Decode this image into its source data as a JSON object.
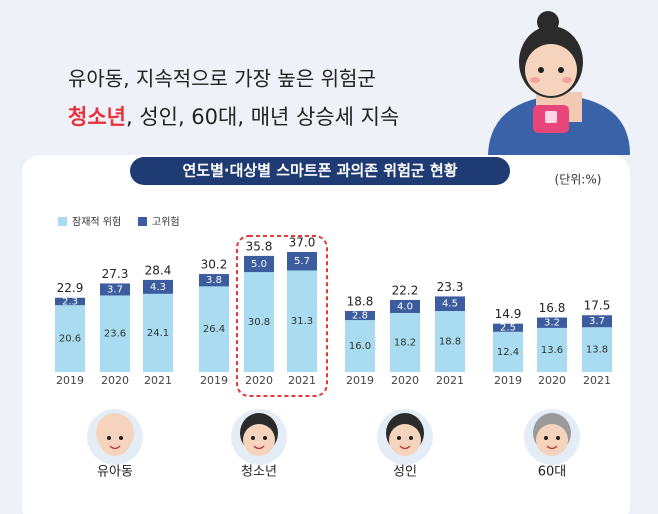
{
  "header": {
    "line1": "유아동, 지속적으로 가장 높은 위험군",
    "highlight": "청소년",
    "line2": ", 성인, 60대, 매년 상승세 지속"
  },
  "chart_data": {
    "type": "bar",
    "stacked": true,
    "title": "연도별·대상별 스마트폰 과의존 위험군 현황",
    "unit": "(단위:%)",
    "groups": [
      "유아동",
      "청소년",
      "성인",
      "60대"
    ],
    "categories": [
      "2019",
      "2020",
      "2021",
      "2019",
      "2020",
      "2021",
      "2019",
      "2020",
      "2021",
      "2019",
      "2020",
      "2021"
    ],
    "series": [
      {
        "name": "잠재적 위험",
        "color": "#a9dcf1",
        "values": [
          20.6,
          23.6,
          24.1,
          26.4,
          30.8,
          31.3,
          16.0,
          18.2,
          18.8,
          12.4,
          13.6,
          13.8
        ],
        "value_labels": [
          "20.6",
          "23.6",
          "24.1",
          "26.4",
          "30.8",
          "31.3",
          "16.0",
          "18.2",
          "18.8",
          "12.4",
          "13.6",
          "13.8"
        ]
      },
      {
        "name": "고위험",
        "color": "#3b5c9e",
        "values": [
          2.3,
          3.7,
          4.3,
          3.8,
          5.0,
          5.7,
          2.8,
          4.0,
          4.5,
          2.5,
          3.2,
          3.7
        ],
        "value_labels": [
          "2.3",
          "3.7",
          "4.3",
          "3.8",
          "5.0",
          "5.7",
          "2.8",
          "4.0",
          "4.5",
          "2.5",
          "3.2",
          "3.7"
        ]
      }
    ],
    "totals": [
      22.9,
      27.3,
      28.4,
      30.2,
      35.8,
      37.0,
      18.8,
      22.2,
      23.3,
      14.9,
      16.8,
      17.5
    ],
    "total_labels": [
      "22.9",
      "27.3",
      "28.4",
      "30.2",
      "35.8",
      "37.0",
      "18.8",
      "22.2",
      "23.3",
      "14.9",
      "16.8",
      "17.5"
    ]
  }
}
